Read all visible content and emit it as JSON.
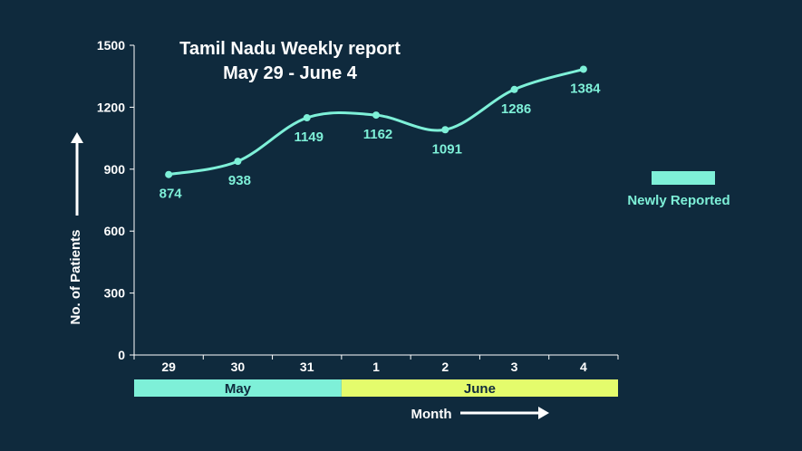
{
  "chart_data": {
    "type": "line",
    "title": "Tamil Nadu Weekly report",
    "subtitle": "May 29 - June 4",
    "xlabel": "Month",
    "ylabel": "No. of Patients",
    "categories": [
      "29",
      "30",
      "31",
      "1",
      "2",
      "3",
      "4"
    ],
    "month_bands": [
      {
        "label": "May",
        "from": 0,
        "to": 2,
        "color": "#7ef0d8"
      },
      {
        "label": "June",
        "from": 3,
        "to": 6,
        "color": "#e4fc6c"
      }
    ],
    "series": [
      {
        "name": "Newly Reported",
        "values": [
          874,
          938,
          1149,
          1162,
          1091,
          1286,
          1384
        ],
        "color": "#7ef0d8"
      }
    ],
    "yticks": [
      "0",
      "300",
      "600",
      "900",
      "1200",
      "1500"
    ],
    "ylim": [
      0,
      1500
    ],
    "legend_position": "right",
    "grid": false
  },
  "colors": {
    "background": "#0f2a3d",
    "axis": "#ffffff",
    "line": "#7ef0d8"
  }
}
